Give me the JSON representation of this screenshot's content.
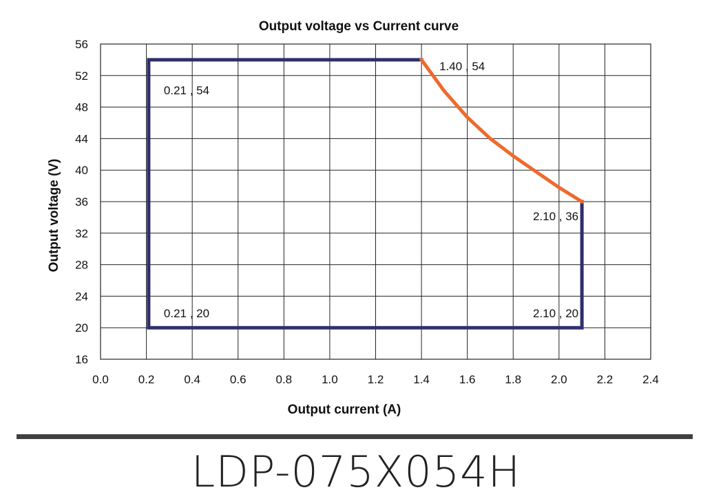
{
  "chart_data": {
    "type": "line",
    "title": "Output voltage vs Current curve",
    "xlabel": "Output current (A)",
    "ylabel": "Output voltage (V)",
    "xlim": [
      0.0,
      2.4
    ],
    "ylim": [
      16,
      56
    ],
    "xticks": [
      "0.0",
      "0.2",
      "0.4",
      "0.6",
      "0.8",
      "1.0",
      "1.2",
      "1.4",
      "1.6",
      "1.8",
      "2.0",
      "2.2",
      "2.4"
    ],
    "yticks": [
      "16",
      "20",
      "24",
      "28",
      "32",
      "36",
      "40",
      "44",
      "48",
      "52",
      "56"
    ],
    "grid": true,
    "series": [
      {
        "color": "#2e2f6b",
        "points": [
          [
            1.4,
            54
          ],
          [
            0.21,
            54
          ],
          [
            0.21,
            20
          ],
          [
            2.1,
            20
          ],
          [
            2.1,
            36
          ]
        ]
      },
      {
        "color": "#ee6a2c",
        "points": [
          [
            1.4,
            54
          ],
          [
            1.5,
            50.0
          ],
          [
            1.6,
            46.7
          ],
          [
            1.7,
            44.0
          ],
          [
            1.8,
            41.8
          ],
          [
            1.9,
            39.8
          ],
          [
            2.0,
            37.8
          ],
          [
            2.1,
            36
          ]
        ]
      }
    ],
    "annotations": [
      {
        "text": "0.21 , 54",
        "x": 0.21,
        "y": 54
      },
      {
        "text": "1.40 , 54",
        "x": 1.4,
        "y": 54
      },
      {
        "text": "2.10 , 36",
        "x": 2.1,
        "y": 36
      },
      {
        "text": "0.21 , 20",
        "x": 0.21,
        "y": 20
      },
      {
        "text": "2.10 , 20",
        "x": 2.1,
        "y": 20
      }
    ]
  },
  "footer": {
    "model": "LDP-075X054H"
  }
}
